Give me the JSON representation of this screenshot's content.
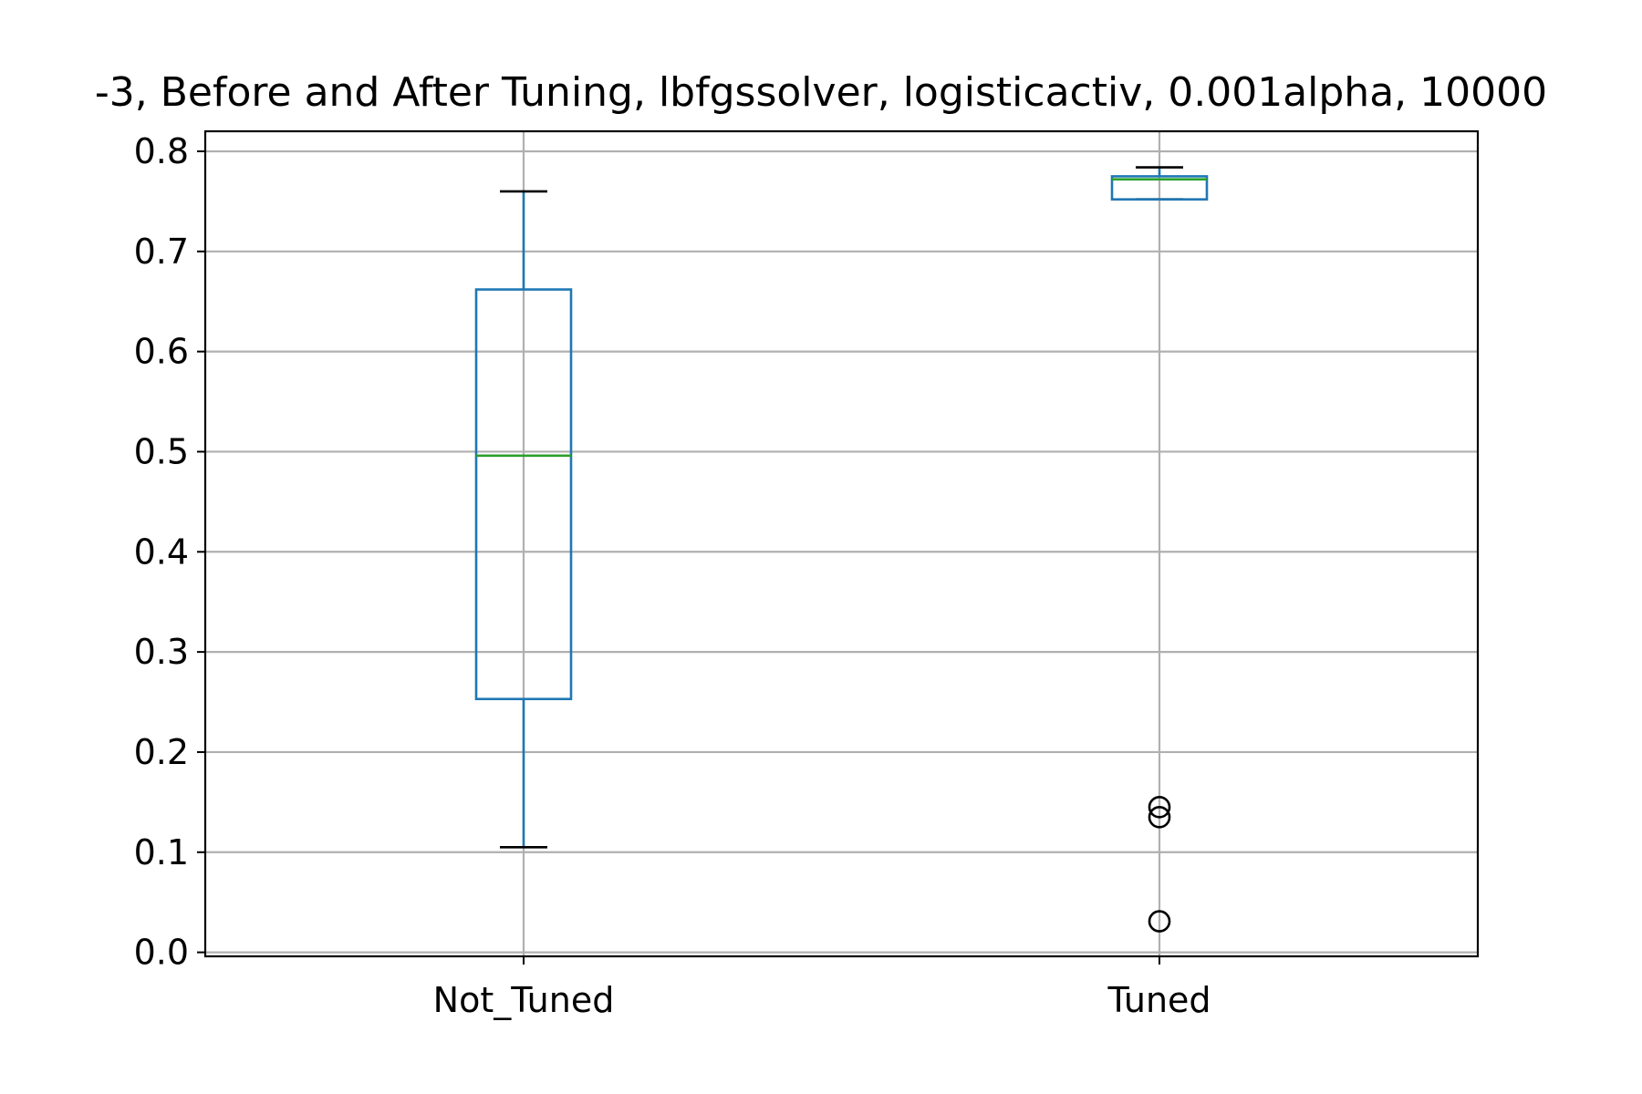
{
  "chart_data": {
    "type": "box",
    "title": "-3, Before and After Tuning, lbfgssolver, logisticactiv, 0.001alpha, 10000",
    "xlabel": "",
    "ylabel": "",
    "categories": [
      "Not_Tuned",
      "Tuned"
    ],
    "ylim": [
      -0.004,
      0.82
    ],
    "yticks": [
      0.0,
      0.1,
      0.2,
      0.3,
      0.4,
      0.5,
      0.6,
      0.7,
      0.8
    ],
    "ytick_labels": [
      "0.0",
      "0.1",
      "0.2",
      "0.3",
      "0.4",
      "0.5",
      "0.6",
      "0.7",
      "0.8"
    ],
    "grid": true,
    "boxes": [
      {
        "category": "Not_Tuned",
        "whisker_low": 0.105,
        "q1": 0.253,
        "median": 0.496,
        "q3": 0.662,
        "whisker_high": 0.76,
        "outliers": []
      },
      {
        "category": "Tuned",
        "whisker_low": 0.752,
        "q1": 0.752,
        "median": 0.772,
        "q3": 0.775,
        "whisker_high": 0.784,
        "outliers": [
          0.145,
          0.135,
          0.031
        ]
      }
    ],
    "colors": {
      "box": "#1f77b4",
      "median": "#2ca02c",
      "whisker_cap": "#000000",
      "grid": "#b0b0b0",
      "outlier": "#000000"
    }
  }
}
